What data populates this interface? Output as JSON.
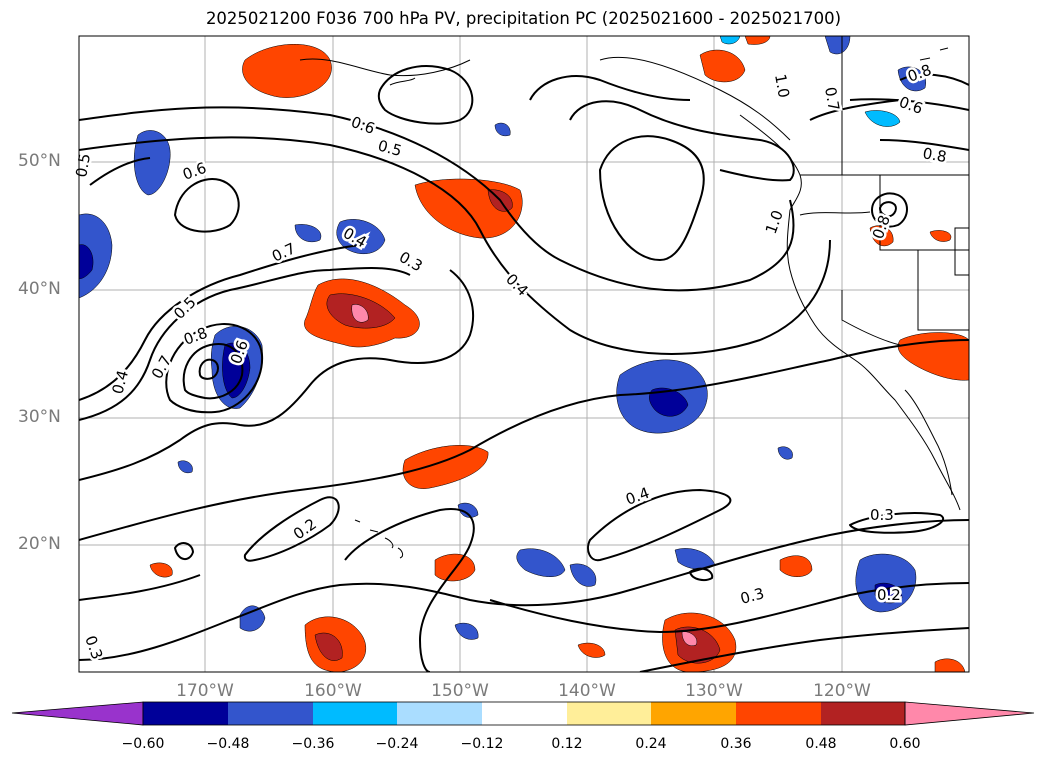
{
  "title": "2025021200 F036 700 hPa PV, precipitation PC (2025021600 - 2025021700)",
  "lat_labels": [
    "50°N",
    "40°N",
    "30°N",
    "20°N"
  ],
  "lon_labels": [
    "170°W",
    "160°W",
    "150°W",
    "140°W",
    "130°W",
    "120°W"
  ],
  "contour_labels": [
    "0.6",
    "0.5",
    "0.6",
    "0.7",
    "0.4",
    "0.3",
    "0.4",
    "0.5",
    "0.8",
    "0.7",
    "0.4",
    "0.6",
    "0.2",
    "0.4",
    "0.3",
    "0.3",
    "0.2",
    "0.3",
    "1.0",
    "0.8",
    "0.6",
    "0.8",
    "1.0",
    "0.7",
    "0.8",
    "0.5"
  ],
  "colorbar": {
    "colors": [
      "#9933cc",
      "#000099",
      "#3355cc",
      "#00bbff",
      "#aaddff",
      "#ffffff",
      "#ffee99",
      "#ffa500",
      "#ff4500",
      "#b22222",
      "#ff88aa"
    ],
    "ticks": [
      "−0.60",
      "−0.48",
      "−0.36",
      "−0.24",
      "−0.12",
      "0.12",
      "0.24",
      "0.36",
      "0.48",
      "0.60"
    ]
  }
}
